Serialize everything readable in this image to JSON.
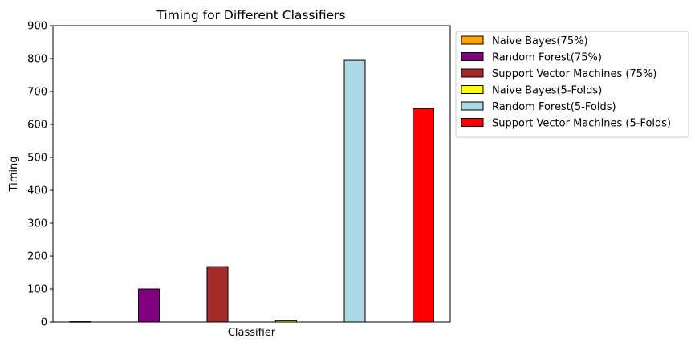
{
  "chart_data": {
    "type": "bar",
    "title": "Timing for Different Classifiers",
    "xlabel": "Classifier",
    "ylabel": "Timing",
    "ylim": [
      0,
      900
    ],
    "yticks": [
      0,
      100,
      200,
      300,
      400,
      500,
      600,
      700,
      800,
      900
    ],
    "grid": false,
    "legend_position": "outside-top-right",
    "series": [
      {
        "name": "Naive Bayes(75%)",
        "value": 1,
        "color": "#FFA500"
      },
      {
        "name": "Random Forest(75%)",
        "value": 100,
        "color": "#800080"
      },
      {
        "name": "Support Vector Machines (75%)",
        "value": 168,
        "color": "#A52A2A"
      },
      {
        "name": "Naive Bayes(5-Folds)",
        "value": 4,
        "color": "#FFFF00"
      },
      {
        "name": "Random Forest(5-Folds)",
        "value": 795,
        "color": "#ADD8E6"
      },
      {
        "name": "Support Vector Machines (5-Folds)",
        "value": 648,
        "color": "#FF0000"
      }
    ]
  }
}
